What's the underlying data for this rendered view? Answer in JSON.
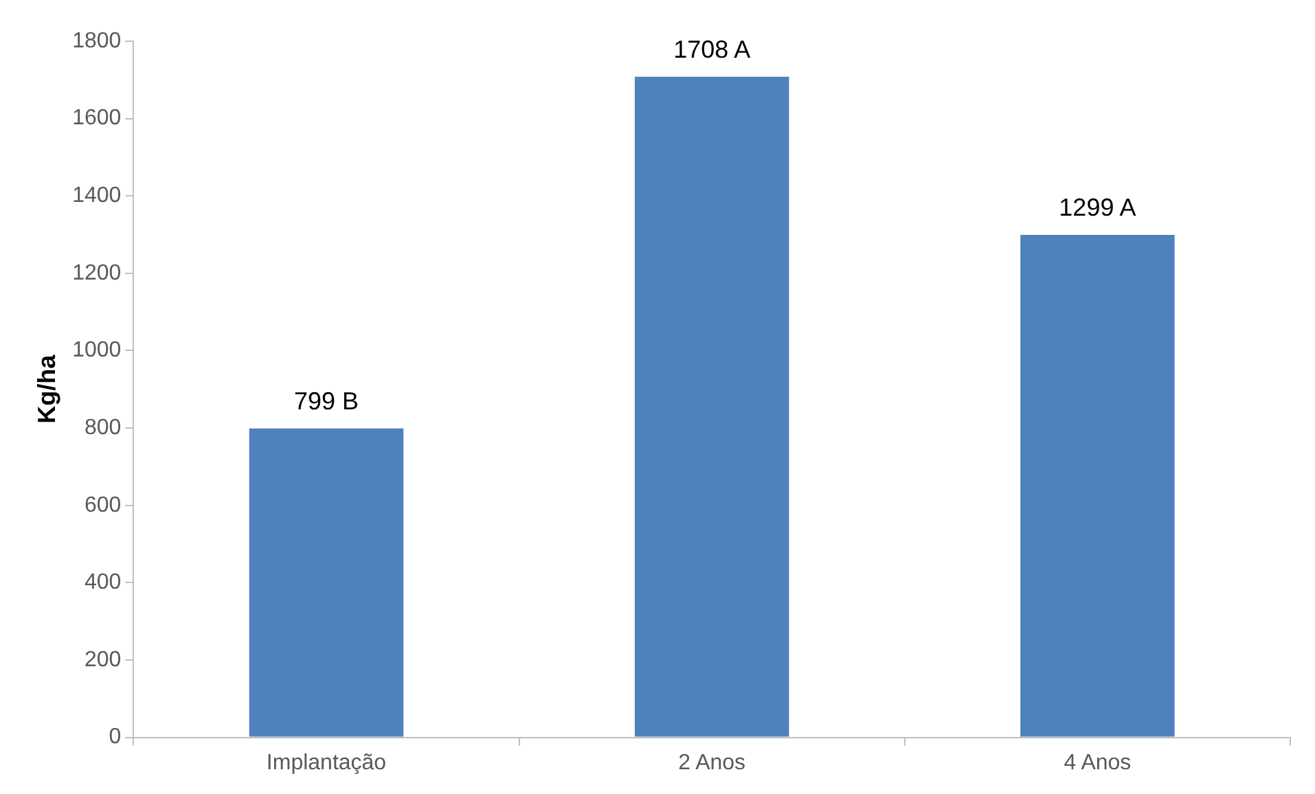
{
  "chart_data": {
    "type": "bar",
    "ylabel": "Kg/ha",
    "categories": [
      "Implantação",
      "2 Anos",
      "4 Anos"
    ],
    "values": [
      799,
      1708,
      1299
    ],
    "color": "#4f81bd",
    "value_labels": [
      "799 B",
      "1708 A",
      "1299 A"
    ],
    "ylim": [
      0,
      1800
    ],
    "yticks": [
      0,
      200,
      400,
      600,
      800,
      1000,
      1200,
      1400,
      1600,
      1800
    ],
    "grid": false,
    "legend": false
  }
}
